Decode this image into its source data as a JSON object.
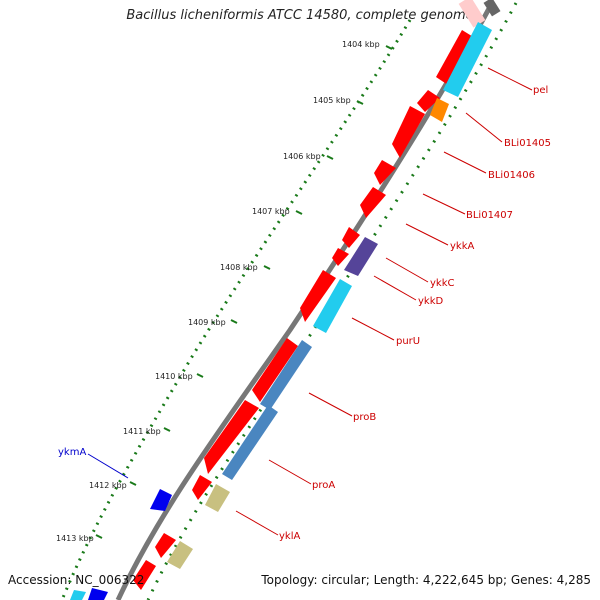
{
  "title": "Bacillus licheniformis ATCC 14580, complete genome",
  "footer": {
    "accession": "Accession: NC_006322",
    "summary": "Topology: circular; Length: 4,222,645 bp; Genes: 4,285"
  },
  "ticks": [
    "1404 kbp",
    "1405 kbp",
    "1406 kbp",
    "1407 kbp",
    "1408 kbp",
    "1409 kbp",
    "1410 kbp",
    "1411 kbp",
    "1412 kbp",
    "1413 kbp"
  ],
  "gene_labels": [
    "pel",
    "BLi01405",
    "BLi01406",
    "BLi01407",
    "ykkA",
    "ykkC",
    "ykkD",
    "purU",
    "proB",
    "proA",
    "yklA",
    "ykmA"
  ],
  "colors": {
    "cds": "#ff0000",
    "backbone": "#777777",
    "tick": "#1a7a1a",
    "label_red": "#cc0000",
    "label_blue": "#0000cc",
    "feature_cyan": "#22ccee",
    "feature_steel": "#4a86c0",
    "feature_khaki": "#c8c080",
    "feature_purple": "#554499",
    "feature_orange": "#ff8800",
    "feature_blue": "#0000ee"
  }
}
